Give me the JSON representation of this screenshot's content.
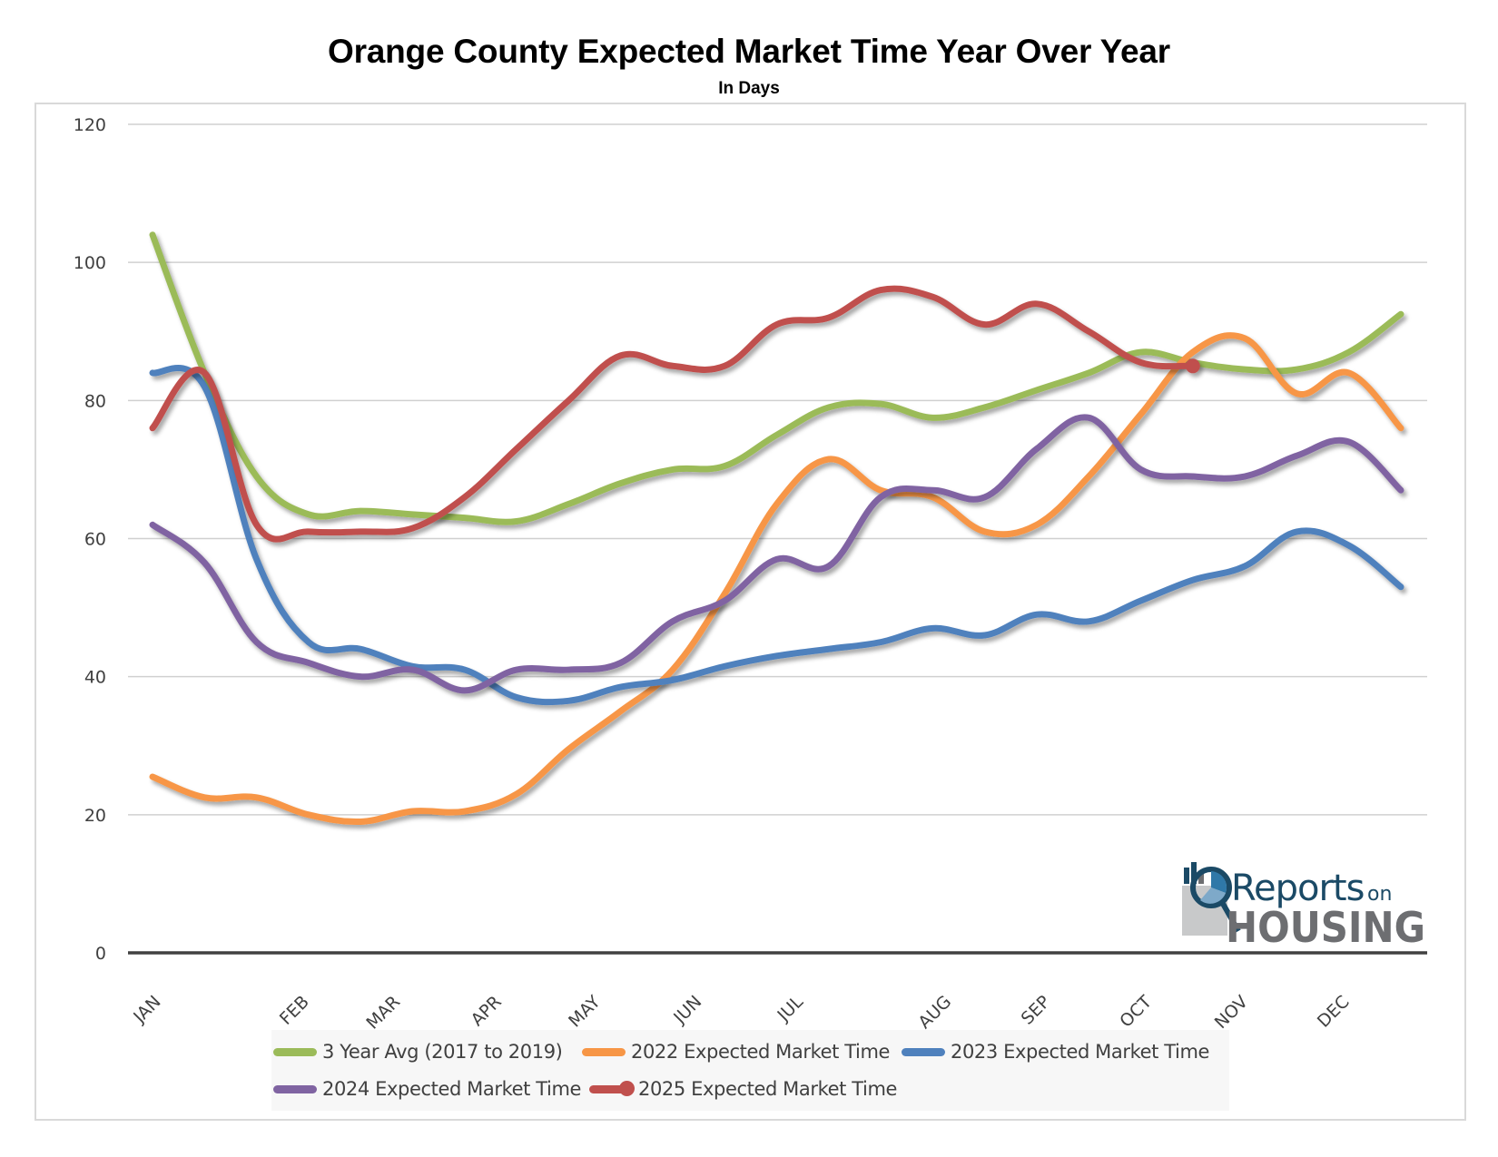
{
  "header": {
    "title": "Orange County Expected Market Time Year Over Year",
    "subtitle": "In Days"
  },
  "logo": {
    "line1": "Reports",
    "line1_suffix": "on",
    "line2": "HOUSING",
    "colors": {
      "navy": "#1b4a66",
      "blue": "#2f78a8",
      "gray": "#6d6e71",
      "light_gray": "#c8c9ca"
    }
  },
  "chart_data": {
    "type": "line",
    "title": "Orange County Expected Market Time Year Over Year",
    "subtitle": "In Days",
    "xlabel": "",
    "ylabel": "",
    "ylim": [
      0,
      120
    ],
    "yticks": [
      0,
      20,
      40,
      60,
      80,
      100,
      120
    ],
    "grid": true,
    "legend_position": "bottom",
    "month_labels": [
      "JAN",
      "FEB",
      "MAR",
      "APR",
      "MAY",
      "JUN",
      "JUL",
      "AUG",
      "SEP",
      "OCT",
      "NOV",
      "DEC"
    ],
    "month_label_positions": [
      0,
      2.85,
      4.6,
      6.55,
      8.45,
      10.4,
      12.35,
      15.2,
      17.1,
      19.05,
      20.9,
      22.85
    ],
    "x": [
      0,
      1,
      2,
      3,
      4,
      5,
      6,
      7,
      8,
      9,
      10,
      11,
      12,
      13,
      14,
      15,
      16,
      17,
      18,
      19,
      20,
      21,
      22,
      23,
      24
    ],
    "series": [
      {
        "name": "3 Year Avg (2017 to 2019)",
        "color": "#9bbb59",
        "marker_end": false,
        "values": [
          104,
          84,
          69,
          63.5,
          64,
          63.5,
          63,
          62.5,
          65,
          68,
          70,
          70.5,
          75,
          79,
          79.5,
          77.5,
          79,
          81.5,
          84,
          87,
          85.5,
          84.5,
          84.5,
          87,
          92.5
        ]
      },
      {
        "name": "2022 Expected Market Time",
        "color": "#f79646",
        "marker_end": false,
        "values": [
          25.5,
          22.5,
          22.5,
          20,
          19,
          20.5,
          20.5,
          23,
          29.5,
          35,
          41,
          52,
          65,
          71.5,
          67,
          66,
          61,
          62,
          69,
          78,
          87,
          89,
          81,
          84,
          76
        ]
      },
      {
        "name": "2023 Expected Market Time",
        "color": "#4f81bd",
        "marker_end": false,
        "values": [
          84,
          82,
          57,
          45,
          44,
          41.5,
          41,
          37,
          36.5,
          38.5,
          39.5,
          41.5,
          43,
          44,
          45,
          47,
          46,
          49,
          48,
          51,
          54,
          56,
          61,
          59,
          53
        ]
      },
      {
        "name": "2024 Expected Market Time",
        "color": "#8064a2",
        "marker_end": false,
        "values": [
          62,
          56.5,
          45,
          42,
          40,
          41,
          38,
          41,
          41,
          42,
          48,
          51,
          57,
          56,
          66,
          67,
          66,
          73,
          77.5,
          70,
          69,
          69,
          72,
          74,
          67
        ]
      },
      {
        "name": "2025 Expected Market Time",
        "color": "#c0504d",
        "marker_end": true,
        "values": [
          76,
          84,
          62,
          61,
          61,
          61.5,
          66,
          73,
          80,
          86.5,
          85,
          85,
          91,
          92,
          96,
          95,
          91,
          94,
          90,
          85.5,
          85
        ]
      }
    ]
  }
}
